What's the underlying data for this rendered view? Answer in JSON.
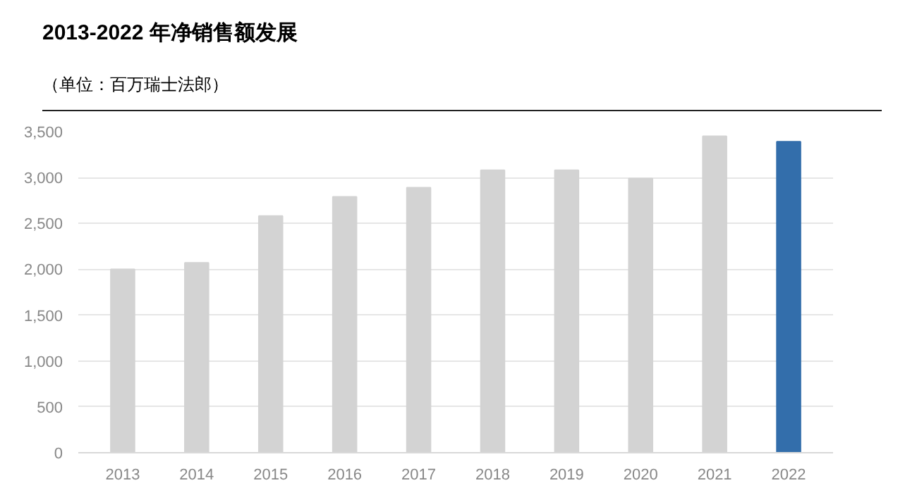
{
  "chart_data": {
    "type": "bar",
    "title": "2013-2022 年净销售额发展",
    "subtitle": "（单位：百万瑞士法郎）",
    "categories": [
      "2013",
      "2014",
      "2015",
      "2016",
      "2017",
      "2018",
      "2019",
      "2020",
      "2021",
      "2022"
    ],
    "values": [
      2000,
      2070,
      2580,
      2790,
      2890,
      3080,
      3080,
      2990,
      3450,
      3390
    ],
    "colors": [
      "#d3d3d3",
      "#d3d3d3",
      "#d3d3d3",
      "#d3d3d3",
      "#d3d3d3",
      "#d3d3d3",
      "#d3d3d3",
      "#d3d3d3",
      "#d3d3d3",
      "#336eab"
    ],
    "ylim": [
      0,
      3500
    ],
    "yticks": [
      {
        "value": 0,
        "label": "0"
      },
      {
        "value": 500,
        "label": "500"
      },
      {
        "value": 1000,
        "label": "1,000"
      },
      {
        "value": 1500,
        "label": "1,500"
      },
      {
        "value": 2000,
        "label": "2,000"
      },
      {
        "value": 2500,
        "label": "2,500"
      },
      {
        "value": 3000,
        "label": "3,000"
      },
      {
        "value": 3500,
        "label": "3,500"
      }
    ],
    "grid": "y"
  }
}
